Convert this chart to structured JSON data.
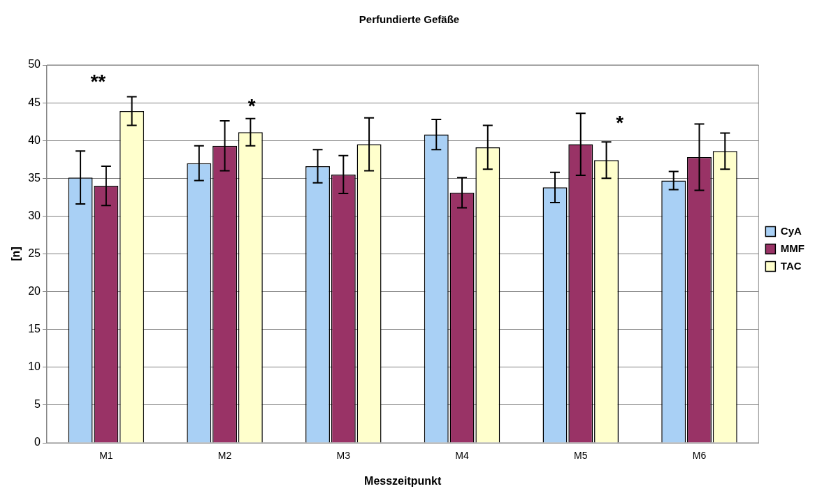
{
  "chart_data": {
    "type": "bar",
    "title": "Perfundierte Gefäße",
    "xlabel": "Messzeitpunkt",
    "ylabel": "[n]",
    "categories": [
      "M1",
      "M2",
      "M3",
      "M4",
      "M5",
      "M6"
    ],
    "series": [
      {
        "name": "CyA",
        "color": "#a9d0f5",
        "values": [
          35.1,
          37.0,
          36.6,
          40.8,
          33.8,
          34.7
        ],
        "errors": [
          3.5,
          2.3,
          2.2,
          2.0,
          2.0,
          1.2
        ]
      },
      {
        "name": "MMF",
        "color": "#993366",
        "values": [
          34.0,
          39.3,
          35.5,
          33.1,
          39.5,
          37.8
        ],
        "errors": [
          2.6,
          3.3,
          2.5,
          2.0,
          4.1,
          4.4
        ]
      },
      {
        "name": "TAC",
        "color": "#ffffcc",
        "values": [
          43.9,
          41.1,
          39.5,
          39.1,
          37.4,
          38.6
        ],
        "errors": [
          1.9,
          1.8,
          3.5,
          2.9,
          2.4,
          2.4
        ]
      }
    ],
    "annotations": [
      "**",
      "*",
      "*"
    ],
    "ylim": [
      0,
      50
    ],
    "yticks": [
      0,
      5,
      10,
      15,
      20,
      25,
      30,
      35,
      40,
      45,
      50
    ],
    "grid": "y",
    "legend": "right"
  }
}
